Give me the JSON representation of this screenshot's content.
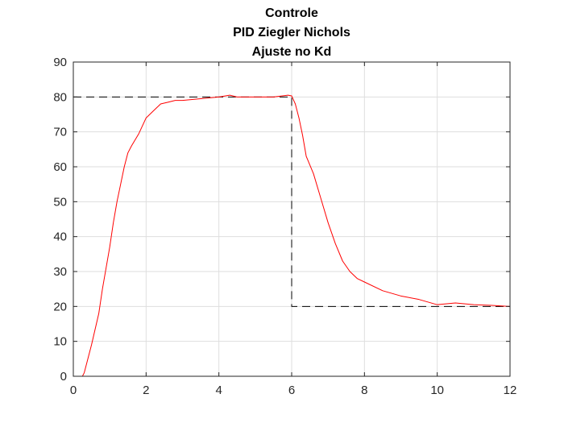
{
  "chart_data": {
    "type": "line",
    "title": [
      "Controle",
      "PID Ziegler Nichols",
      "Ajuste no Kd"
    ],
    "xlabel": "",
    "ylabel": "",
    "xlim": [
      0,
      12
    ],
    "ylim": [
      0,
      90
    ],
    "xticks": [
      0,
      2,
      4,
      6,
      8,
      10,
      12
    ],
    "yticks": [
      0,
      10,
      20,
      30,
      40,
      50,
      60,
      70,
      80,
      90
    ],
    "grid": true,
    "legend": "none",
    "series": [
      {
        "style": "dashed",
        "color": "#000000",
        "x": [
          0,
          6,
          6,
          12
        ],
        "y": [
          80,
          80,
          20,
          20
        ]
      },
      {
        "style": "solid",
        "color": "#ff0000",
        "x": [
          0,
          0.25,
          0.3,
          0.5,
          0.7,
          0.8,
          0.9,
          1.0,
          1.1,
          1.2,
          1.3,
          1.4,
          1.5,
          1.6,
          1.8,
          2.0,
          2.2,
          2.4,
          2.6,
          2.8,
          3.0,
          3.5,
          4.0,
          4.3,
          4.5,
          5.0,
          5.5,
          5.9,
          6.0,
          6.1,
          6.2,
          6.3,
          6.4,
          6.6,
          6.8,
          7.0,
          7.2,
          7.4,
          7.6,
          7.8,
          8.0,
          8.5,
          9.0,
          9.5,
          10.0,
          10.5,
          11.0,
          11.5,
          12.0
        ],
        "y": [
          0,
          0,
          1,
          9,
          18,
          25,
          31,
          37,
          44,
          50,
          55,
          60,
          64,
          66,
          69.5,
          74,
          76,
          78,
          78.5,
          79,
          79,
          79.5,
          80,
          80.5,
          80,
          80,
          80,
          80.5,
          80.3,
          78,
          74,
          69,
          63,
          58,
          51,
          44,
          38,
          33,
          30,
          28,
          27,
          24.5,
          23,
          22,
          20.5,
          21,
          20.5,
          20.3,
          20
        ]
      }
    ]
  }
}
